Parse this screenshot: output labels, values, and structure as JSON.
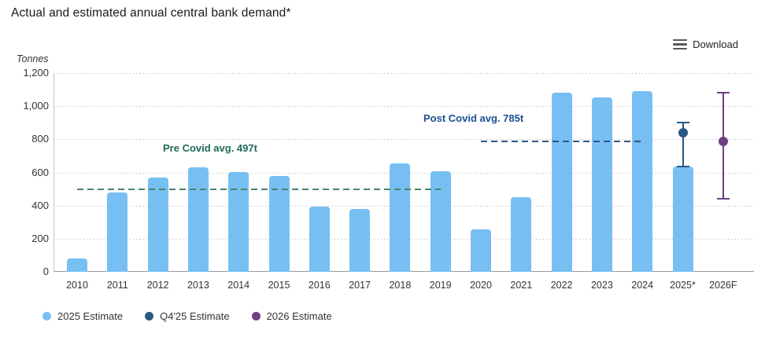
{
  "page": {
    "title": "Actual and estimated annual central bank demand*"
  },
  "toolbar": {
    "download_label": "Download",
    "download_icon": "hamburger-menu-icon"
  },
  "chart_data": {
    "type": "bar",
    "title": "Actual and estimated annual central bank demand*",
    "ylabel": "Tonnes",
    "xlabel": "",
    "ylim": [
      0,
      1200
    ],
    "yticks": [
      0,
      200,
      400,
      600,
      800,
      1000,
      1200
    ],
    "grid": "dotted-horizontal",
    "categories": [
      "2010",
      "2011",
      "2012",
      "2013",
      "2014",
      "2015",
      "2016",
      "2017",
      "2018",
      "2019",
      "2020",
      "2021",
      "2022",
      "2023",
      "2024",
      "2025*",
      "2026F"
    ],
    "series": [
      {
        "name": "Central bank demand (2025 Estimate for 2025*)",
        "color": "#77bff3",
        "values": [
          79,
          481,
          569,
          629,
          601,
          580,
          395,
          379,
          656,
          605,
          255,
          450,
          1082,
          1051,
          1089,
          635,
          null
        ]
      }
    ],
    "error_points": [
      {
        "category": "2025*",
        "name": "Q4'25 Estimate",
        "value": 840,
        "low": 635,
        "high": 900,
        "color": "#2a5782"
      },
      {
        "category": "2026F",
        "name": "2026 Estimate",
        "value": 785,
        "low": 440,
        "high": 1080,
        "color": "#6f3f82"
      }
    ],
    "annotations": [
      {
        "label": "Pre Covid avg. 497t",
        "value": 497,
        "from": "2010",
        "to": "2019",
        "text_color": "#1f6a58",
        "line_color": "#4e8272",
        "label_pos": {
          "x": 139,
          "y": 88
        }
      },
      {
        "label": "Post Covid avg. 785t",
        "value": 785,
        "from": "2020",
        "to": "2024",
        "text_color": "#1d4f91",
        "line_color": "#2a5782",
        "label_pos": {
          "x": 470,
          "y": 50
        }
      }
    ],
    "legend": {
      "position": "bottom-left",
      "items": [
        {
          "label": "2025 Estimate",
          "color": "#77bff3"
        },
        {
          "label": "Q4'25 Estimate",
          "color": "#2a5782"
        },
        {
          "label": "2026 Estimate",
          "color": "#6f3f82"
        }
      ]
    }
  }
}
